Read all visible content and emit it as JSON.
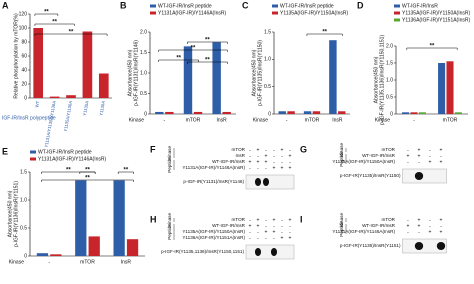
{
  "chart_data": [
    {
      "type": "bar",
      "panel": "A",
      "ylabel": [
        "Relative phosphorylation by mTOR(%)"
      ],
      "categories": [
        "WT",
        "Y1131A/Y1135A/Y1136A",
        "Y1135A/Y1136A",
        "Y1135A",
        "Y1136A"
      ],
      "values": [
        100,
        2,
        4,
        95,
        35
      ],
      "color": "#c8242b",
      "xlabel": "IGF-IR/InsR polypeptide",
      "ylim": [
        0,
        120
      ],
      "yticks": [
        0,
        20,
        40,
        60,
        80,
        100,
        120
      ],
      "annotations": [
        "**",
        "**",
        "**"
      ]
    },
    {
      "type": "bar",
      "panel": "B",
      "ylabel": [
        "Absorbance(450 nm)",
        "p-IGF-IR(Y1131)/InsR(Y1146)"
      ],
      "xlabel": "Kinase",
      "categories": [
        "-",
        "mTOR",
        "InsR"
      ],
      "series": [
        {
          "name": "WT-IGF-IR/InsR peptide",
          "color": "#2f5ea8",
          "values": [
            0.05,
            1.65,
            1.75
          ]
        },
        {
          "name": "Y1131A(IGF-IR)/Y1146A(InsR)",
          "color": "#c8242b",
          "values": [
            0.05,
            0.05,
            0.05
          ]
        }
      ],
      "ylim": [
        0,
        2
      ],
      "yticks": [
        0,
        0.5,
        {
          "value": 1,
          "label": "1.0"
        },
        1.5,
        {
          "value": 2,
          "label": "2.0"
        }
      ],
      "annotations": [
        "**",
        "**",
        "**",
        "**"
      ]
    },
    {
      "type": "bar",
      "panel": "C",
      "ylabel": [
        "Absorbance(450 nm)",
        "p-IGF-IR(Y1135)/InsR(Y1150)"
      ],
      "xlabel": "Kinase",
      "categories": [
        "-",
        "mTOR",
        "InsR"
      ],
      "series": [
        {
          "name": "WT-IGF-IR/InsR peptide",
          "color": "#2f5ea8",
          "values": [
            0.05,
            0.05,
            1.35
          ]
        },
        {
          "name": "Y1135A(IGF-IR)/Y1150A(InsR)",
          "color": "#c8242b",
          "values": [
            0.05,
            0.05,
            0.05
          ]
        }
      ],
      "ylim": [
        0,
        1.5
      ],
      "yticks": [
        0,
        0.5,
        {
          "value": 1,
          "label": "1.0"
        },
        1.5
      ],
      "annotations": [
        "**"
      ]
    },
    {
      "type": "bar",
      "panel": "D",
      "ylabel": [
        "Absorbance(450 nm)",
        "p-IGF-IR(Y1135,1136)/InsR(Y1150,1151)"
      ],
      "xlabel": "Kinase",
      "categories": [
        "-",
        "mTOR"
      ],
      "series": [
        {
          "name": "WT-IGF-IR/InsR",
          "color": "#2f5ea8",
          "values": [
            0.05,
            1.5
          ]
        },
        {
          "name": "Y1135A(IGF-IR)/Y1150A(InsR)",
          "color": "#c8242b",
          "values": [
            0.05,
            1.55
          ]
        },
        {
          "name": "Y1136A(IGF-IR)/Y1151A(InsR)",
          "color": "#5aa832",
          "values": [
            0.05,
            0.05
          ]
        }
      ],
      "ylim": [
        0,
        2
      ],
      "yticks": [
        0,
        0.5,
        {
          "value": 1,
          "label": "1.0"
        },
        1.5,
        {
          "value": 2,
          "label": "2.0"
        }
      ],
      "annotations": [
        "**"
      ]
    },
    {
      "type": "bar",
      "panel": "E",
      "ylabel": [
        "Absorbance(450 nm)",
        "p-IGF-IR(Y1136)/InsR(Y1151)"
      ],
      "xlabel": "Kinase",
      "categories": [
        "-",
        "mTOR",
        "InsR"
      ],
      "series": [
        {
          "name": "WT-IGF-IR/InsR peptide",
          "color": "#2f5ea8",
          "values": [
            0.05,
            1.35,
            1.35
          ]
        },
        {
          "name": "Y1131A(IGF-IR)/Y1146A(InsR)",
          "color": "#c8242b",
          "values": [
            0.03,
            0.35,
            0.3
          ]
        }
      ],
      "ylim": [
        0,
        1.5
      ],
      "yticks": [
        0,
        0.5,
        {
          "value": 1,
          "label": "1.0"
        },
        1.5
      ],
      "annotations": [
        "**",
        "**",
        "**",
        "**"
      ]
    }
  ],
  "blots": [
    {
      "panel": "F",
      "groups": [
        {
          "label": "Kinase",
          "rows": [
            {
              "label": "mTOR",
              "signs": [
                "-",
                "+",
                "-",
                "-",
                "+",
                "-"
              ]
            },
            {
              "label": "InsR",
              "signs": [
                "-",
                "-",
                "+",
                "-",
                "-",
                "+"
              ]
            }
          ]
        },
        {
          "label": "Peptide",
          "rows": [
            {
              "label": "WT-IGF-IR/InsR",
              "signs": [
                "+",
                "+",
                "+",
                "-",
                "-",
                "-"
              ]
            },
            {
              "label": "Y1131A(IGF-IR)/Y1146A(InsR)",
              "signs": [
                "-",
                "-",
                "-",
                "+",
                "+",
                "+"
              ]
            }
          ]
        }
      ],
      "blot_label": "p-IGF-IR(Y1131)/InsR(Y1146)"
    },
    {
      "panel": "G",
      "groups": [
        {
          "label": "Kinase",
          "rows": [
            {
              "label": "mTOR",
              "signs": [
                "-",
                "+",
                "-",
                "+"
              ]
            }
          ]
        },
        {
          "label": "Peptide",
          "rows": [
            {
              "label": "WT-IGF-IR/InsR",
              "signs": [
                "+",
                "+",
                "-",
                "-"
              ]
            },
            {
              "label": "Y1135A(IGF-IR)/Y1150A(InsR)",
              "signs": [
                "-",
                "-",
                "+",
                "+"
              ]
            }
          ]
        }
      ],
      "blot_label": "p-IGF-IR(Y1135)/InsR(Y1150)"
    },
    {
      "panel": "H",
      "groups": [
        {
          "label": "Kinase",
          "rows": [
            {
              "label": "mTOR",
              "signs": [
                "-",
                "+",
                "-",
                "+",
                "-",
                "+"
              ]
            }
          ]
        },
        {
          "label": "Peptide",
          "rows": [
            {
              "label": "WT-IGF-IR/InsR",
              "signs": [
                "+",
                "+",
                "-",
                "-",
                "-",
                "-"
              ]
            },
            {
              "label": "Y1135A(IGF-IR)/Y1150A(InsR)",
              "signs": [
                "-",
                "-",
                "+",
                "+",
                "-",
                "-"
              ]
            },
            {
              "label": "Y1136A(IGF-IR)/Y1151A(InsR)",
              "signs": [
                "-",
                "-",
                "-",
                "-",
                "+",
                "+"
              ]
            }
          ]
        }
      ],
      "blot_label": "p-IGF-IR(Y1135,1136)/InsR(Y1150,1151)"
    },
    {
      "panel": "I",
      "groups": [
        {
          "label": "Kinase",
          "rows": [
            {
              "label": "mTOR",
              "signs": [
                "-",
                "+",
                "-",
                "+"
              ]
            }
          ]
        },
        {
          "label": "Peptide",
          "rows": [
            {
              "label": "WT-IGF-IR/InsR",
              "signs": [
                "+",
                "+",
                "-",
                "-"
              ]
            },
            {
              "label": "Y1131A(IGF-IR)/Y1146A(InsR)",
              "signs": [
                "-",
                "-",
                "+",
                "+"
              ]
            }
          ]
        }
      ],
      "blot_label": "p-IGF-IR(Y1136)/InsR(Y1151)"
    }
  ]
}
